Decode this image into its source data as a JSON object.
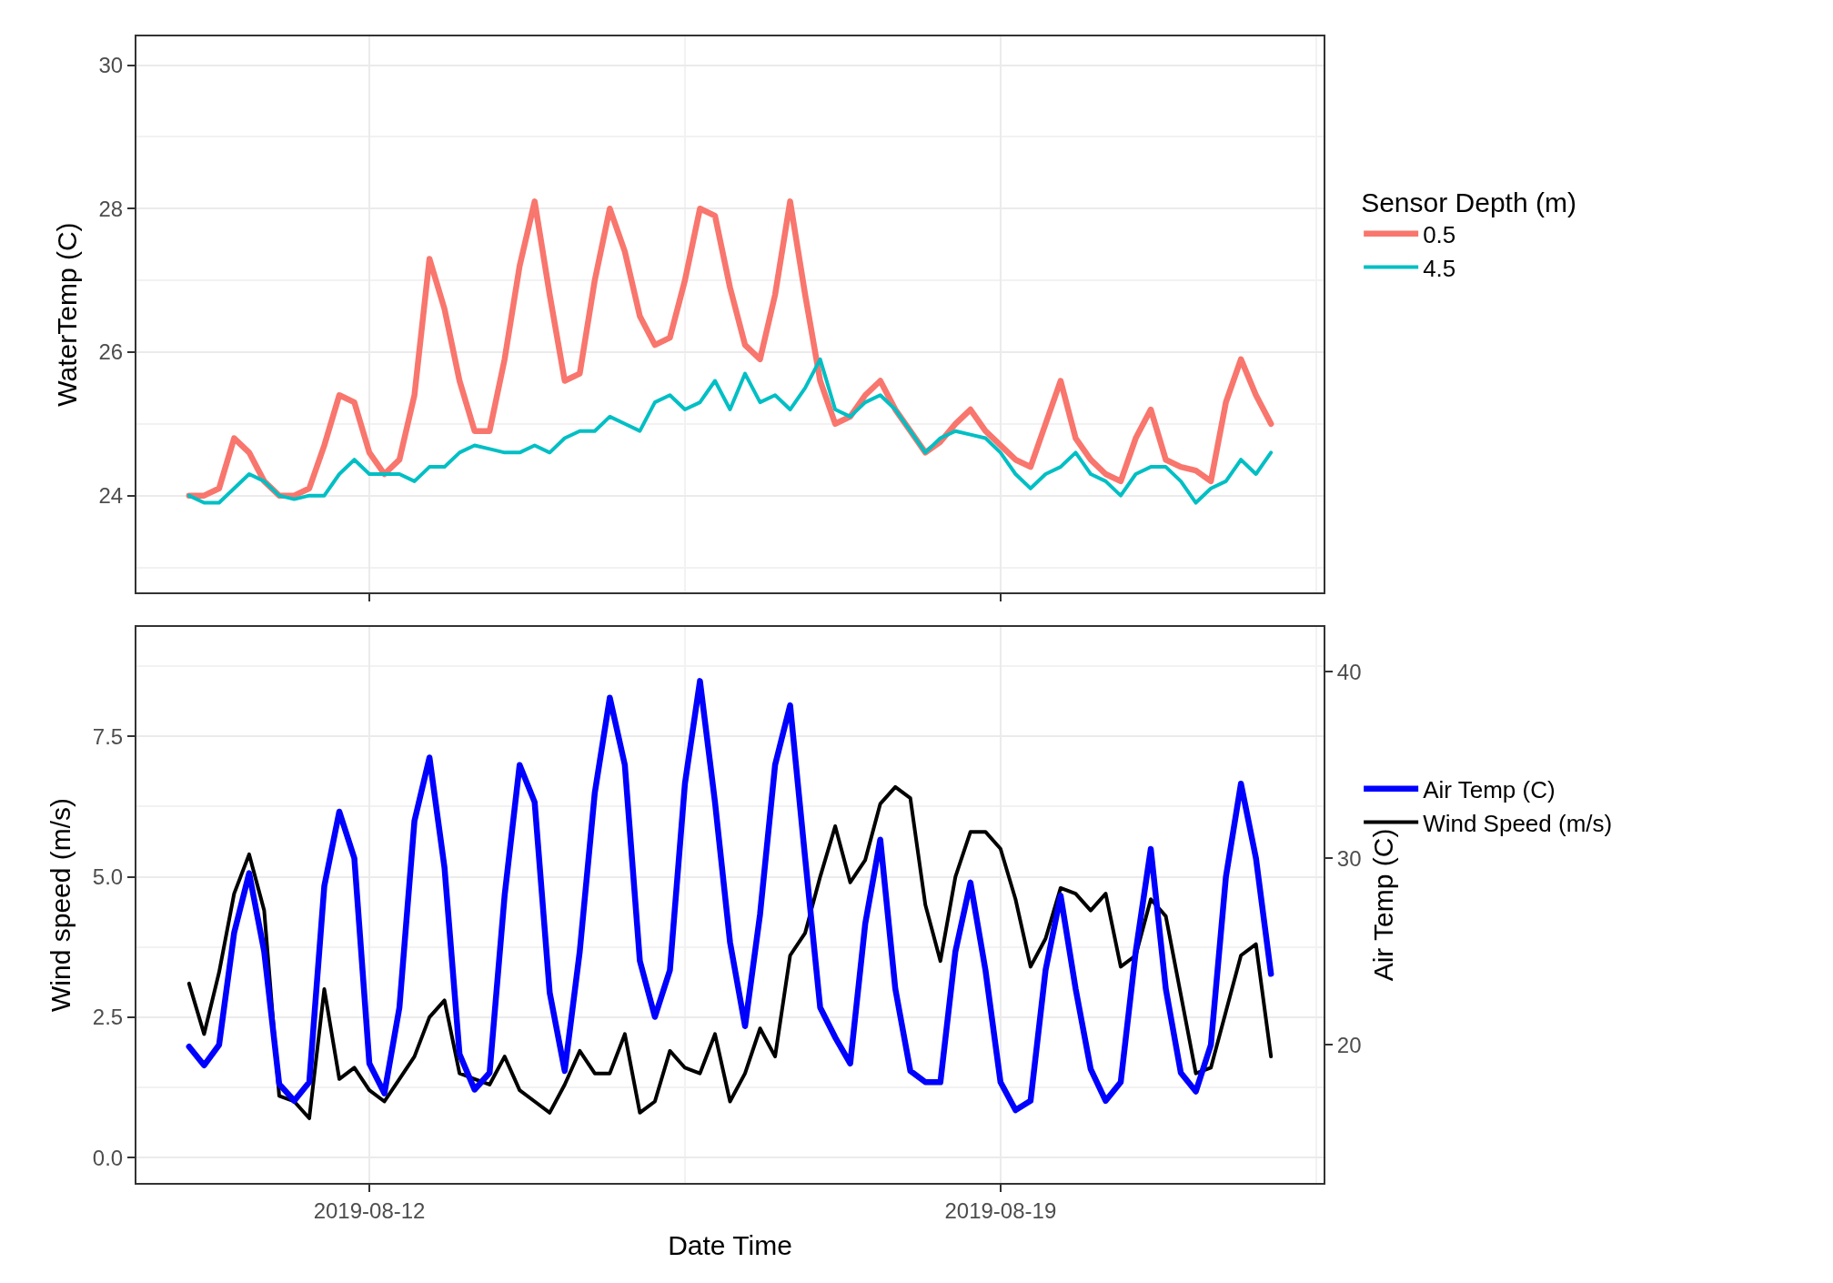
{
  "chart_data": [
    {
      "type": "line",
      "ylabel": "WaterTemp (C)",
      "legend_title": "Sensor Depth (m)",
      "legend": "right",
      "grid": true,
      "tick_labels": "y",
      "xlim": [
        "2019-08-09T10:00",
        "2019-08-22T14:00"
      ],
      "xticks": [
        "2019-08-12",
        "2019-08-19"
      ],
      "ylim": [
        22.65,
        30.4
      ],
      "yticks": [
        24,
        26,
        28,
        30
      ],
      "x": [
        "2019-08-10T00:00",
        "2019-08-10T04:00",
        "2019-08-10T08:00",
        "2019-08-10T12:00",
        "2019-08-10T16:00",
        "2019-08-10T20:00",
        "2019-08-11T00:00",
        "2019-08-11T04:00",
        "2019-08-11T08:00",
        "2019-08-11T12:00",
        "2019-08-11T16:00",
        "2019-08-11T20:00",
        "2019-08-12T00:00",
        "2019-08-12T04:00",
        "2019-08-12T08:00",
        "2019-08-12T12:00",
        "2019-08-12T16:00",
        "2019-08-12T20:00",
        "2019-08-13T00:00",
        "2019-08-13T04:00",
        "2019-08-13T08:00",
        "2019-08-13T12:00",
        "2019-08-13T16:00",
        "2019-08-13T20:00",
        "2019-08-14T00:00",
        "2019-08-14T04:00",
        "2019-08-14T08:00",
        "2019-08-14T12:00",
        "2019-08-14T16:00",
        "2019-08-14T20:00",
        "2019-08-15T00:00",
        "2019-08-15T04:00",
        "2019-08-15T08:00",
        "2019-08-15T12:00",
        "2019-08-15T16:00",
        "2019-08-15T20:00",
        "2019-08-16T00:00",
        "2019-08-16T04:00",
        "2019-08-16T08:00",
        "2019-08-16T12:00",
        "2019-08-16T16:00",
        "2019-08-16T20:00",
        "2019-08-17T00:00",
        "2019-08-17T04:00",
        "2019-08-17T08:00",
        "2019-08-17T12:00",
        "2019-08-17T16:00",
        "2019-08-17T20:00",
        "2019-08-18T00:00",
        "2019-08-18T04:00",
        "2019-08-18T08:00",
        "2019-08-18T12:00",
        "2019-08-18T16:00",
        "2019-08-18T20:00",
        "2019-08-19T00:00",
        "2019-08-19T04:00",
        "2019-08-19T08:00",
        "2019-08-19T12:00",
        "2019-08-19T16:00",
        "2019-08-19T20:00",
        "2019-08-20T00:00",
        "2019-08-20T04:00",
        "2019-08-20T08:00",
        "2019-08-20T12:00",
        "2019-08-20T16:00",
        "2019-08-20T20:00",
        "2019-08-21T00:00",
        "2019-08-21T04:00",
        "2019-08-21T08:00",
        "2019-08-21T12:00",
        "2019-08-21T16:00",
        "2019-08-21T20:00",
        "2019-08-22T00:00"
      ],
      "series": [
        {
          "name": "0.5",
          "color": "#f8766d",
          "values": [
            24.0,
            24.0,
            24.1,
            24.8,
            24.6,
            24.2,
            24.0,
            24.0,
            24.1,
            24.7,
            25.4,
            25.3,
            24.6,
            24.3,
            24.5,
            25.4,
            27.3,
            26.6,
            25.6,
            24.9,
            24.9,
            25.9,
            27.2,
            28.1,
            26.8,
            25.6,
            25.7,
            27.0,
            28.0,
            27.4,
            26.5,
            26.1,
            26.2,
            27.0,
            28.0,
            27.9,
            26.9,
            26.1,
            25.9,
            26.8,
            28.1,
            26.8,
            25.6,
            25.0,
            25.1,
            25.4,
            25.6,
            25.2,
            24.9,
            24.6,
            24.75,
            25.0,
            25.2,
            24.9,
            24.7,
            24.5,
            24.4,
            25.0,
            25.6,
            24.8,
            24.5,
            24.3,
            24.2,
            24.8,
            25.2,
            24.5,
            24.4,
            24.35,
            24.2,
            25.3,
            25.9,
            25.4,
            25.0
          ]
        },
        {
          "name": "4.5",
          "color": "#00bfc4",
          "values": [
            24.0,
            23.9,
            23.9,
            24.1,
            24.3,
            24.2,
            24.0,
            23.95,
            24.0,
            24.0,
            24.3,
            24.5,
            24.3,
            24.3,
            24.3,
            24.2,
            24.4,
            24.4,
            24.6,
            24.7,
            24.65,
            24.6,
            24.6,
            24.7,
            24.6,
            24.8,
            24.9,
            24.9,
            25.1,
            25.0,
            24.9,
            25.3,
            25.4,
            25.2,
            25.3,
            25.6,
            25.2,
            25.7,
            25.3,
            25.4,
            25.2,
            25.5,
            25.9,
            25.2,
            25.1,
            25.3,
            25.4,
            25.2,
            24.9,
            24.6,
            24.8,
            24.9,
            24.85,
            24.8,
            24.6,
            24.3,
            24.1,
            24.3,
            24.4,
            24.6,
            24.3,
            24.2,
            24.0,
            24.3,
            24.4,
            24.4,
            24.2,
            23.9,
            24.1,
            24.2,
            24.5,
            24.3,
            24.6
          ]
        }
      ]
    },
    {
      "type": "line",
      "xlabel": "Date Time",
      "ylabel": "Wind speed (m/s)",
      "y2label": "Air Temp (C)",
      "legend": "right",
      "grid": true,
      "xlim": [
        "2019-08-09T10:00",
        "2019-08-22T14:00"
      ],
      "xticks": [
        "2019-08-12",
        "2019-08-19"
      ],
      "ylim": [
        -0.45,
        9.45
      ],
      "yticks": [
        {
          "value": 0,
          "label": "0.0"
        },
        {
          "value": 2.5,
          "label": "2.5"
        },
        {
          "value": 5,
          "label": "5.0"
        },
        {
          "value": 7.5,
          "label": "7.5"
        }
      ],
      "y2lim": [
        12.6,
        42.4
      ],
      "y2ticks": [
        20,
        30,
        40
      ],
      "x": [
        "2019-08-10T00:00",
        "2019-08-10T04:00",
        "2019-08-10T08:00",
        "2019-08-10T12:00",
        "2019-08-10T16:00",
        "2019-08-10T20:00",
        "2019-08-11T00:00",
        "2019-08-11T04:00",
        "2019-08-11T08:00",
        "2019-08-11T12:00",
        "2019-08-11T16:00",
        "2019-08-11T20:00",
        "2019-08-12T00:00",
        "2019-08-12T04:00",
        "2019-08-12T08:00",
        "2019-08-12T12:00",
        "2019-08-12T16:00",
        "2019-08-12T20:00",
        "2019-08-13T00:00",
        "2019-08-13T04:00",
        "2019-08-13T08:00",
        "2019-08-13T12:00",
        "2019-08-13T16:00",
        "2019-08-13T20:00",
        "2019-08-14T00:00",
        "2019-08-14T04:00",
        "2019-08-14T08:00",
        "2019-08-14T12:00",
        "2019-08-14T16:00",
        "2019-08-14T20:00",
        "2019-08-15T00:00",
        "2019-08-15T04:00",
        "2019-08-15T08:00",
        "2019-08-15T12:00",
        "2019-08-15T16:00",
        "2019-08-15T20:00",
        "2019-08-16T00:00",
        "2019-08-16T04:00",
        "2019-08-16T08:00",
        "2019-08-16T12:00",
        "2019-08-16T16:00",
        "2019-08-16T20:00",
        "2019-08-17T00:00",
        "2019-08-17T04:00",
        "2019-08-17T08:00",
        "2019-08-17T12:00",
        "2019-08-17T16:00",
        "2019-08-17T20:00",
        "2019-08-18T00:00",
        "2019-08-18T04:00",
        "2019-08-18T08:00",
        "2019-08-18T12:00",
        "2019-08-18T16:00",
        "2019-08-18T20:00",
        "2019-08-19T00:00",
        "2019-08-19T04:00",
        "2019-08-19T08:00",
        "2019-08-19T12:00",
        "2019-08-19T16:00",
        "2019-08-19T20:00",
        "2019-08-20T00:00",
        "2019-08-20T04:00",
        "2019-08-20T08:00",
        "2019-08-20T12:00",
        "2019-08-20T16:00",
        "2019-08-20T20:00",
        "2019-08-21T00:00",
        "2019-08-21T04:00",
        "2019-08-21T08:00",
        "2019-08-21T12:00",
        "2019-08-21T16:00",
        "2019-08-21T20:00",
        "2019-08-22T00:00"
      ],
      "series": [
        {
          "name": "Air Temp (C)",
          "color": "#0000ff",
          "axis": "y2",
          "values": [
            19.9,
            18.9,
            20.0,
            26.0,
            29.2,
            25.0,
            17.9,
            17.0,
            18.0,
            28.5,
            32.5,
            30.0,
            19.0,
            17.4,
            22.0,
            32.0,
            35.4,
            29.5,
            19.5,
            17.6,
            18.5,
            28.0,
            35.0,
            33.0,
            22.8,
            18.6,
            25.0,
            33.5,
            38.6,
            35.0,
            24.5,
            21.5,
            24.0,
            34.0,
            39.5,
            33.0,
            25.5,
            21.0,
            27.0,
            35.0,
            38.2,
            30.0,
            22.0,
            20.4,
            19.0,
            26.5,
            31.0,
            23.0,
            18.6,
            18.0,
            18.0,
            25.0,
            28.7,
            24.0,
            18.0,
            16.5,
            17.0,
            24.0,
            28.0,
            23.0,
            18.7,
            17.0,
            18.0,
            25.0,
            30.5,
            23.0,
            18.5,
            17.5,
            20.0,
            29.0,
            34.0,
            30.0,
            23.8
          ]
        },
        {
          "name": "Wind Speed (m/s)",
          "color": "#000000",
          "values": [
            3.1,
            2.2,
            3.3,
            4.7,
            5.4,
            4.4,
            1.1,
            1.0,
            0.7,
            3.0,
            1.4,
            1.6,
            1.2,
            1.0,
            1.4,
            1.8,
            2.5,
            2.8,
            1.5,
            1.4,
            1.3,
            1.8,
            1.2,
            1.0,
            0.8,
            1.3,
            1.9,
            1.5,
            1.5,
            2.2,
            0.8,
            1.0,
            1.9,
            1.6,
            1.5,
            2.2,
            1.0,
            1.5,
            2.3,
            1.8,
            3.6,
            4.0,
            5.0,
            5.9,
            4.9,
            5.3,
            6.3,
            6.6,
            6.4,
            4.5,
            3.5,
            5.0,
            5.8,
            5.8,
            5.5,
            4.6,
            3.4,
            3.9,
            4.8,
            4.7,
            4.4,
            4.7,
            3.4,
            3.6,
            4.6,
            4.3,
            2.9,
            1.5,
            1.6,
            2.6,
            3.6,
            3.8,
            1.8
          ]
        }
      ]
    }
  ]
}
